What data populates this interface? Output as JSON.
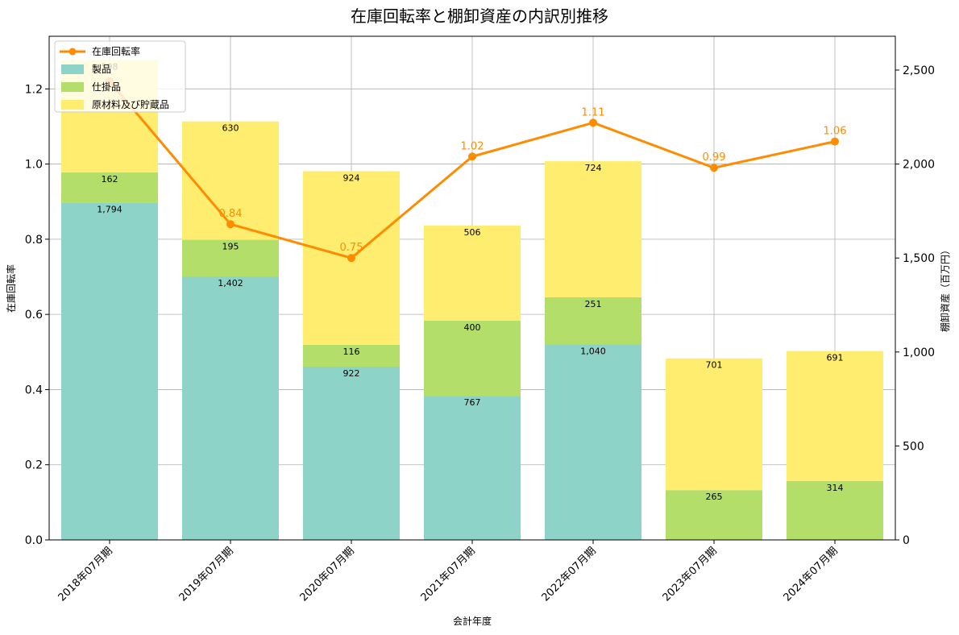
{
  "chart_data": {
    "type": "bar",
    "title": "在庫回転率と棚卸資産の内訳別推移",
    "xlabel": "会計年度",
    "ylabel_left": "在庫回転率",
    "ylabel_right": "棚卸資産（百万円）",
    "categories": [
      "2018年07月期",
      "2019年07月期",
      "2020年07月期",
      "2021年07月期",
      "2022年07月期",
      "2023年07月期",
      "2024年07月期"
    ],
    "stacked_series": [
      {
        "name": "製品",
        "color": "#8dd3c7",
        "values": [
          1794,
          1402,
          922,
          767,
          1040,
          0,
          0
        ],
        "labels": [
          "1,794",
          "1,402",
          "922",
          "767",
          "1,040",
          "",
          ""
        ]
      },
      {
        "name": "仕掛品",
        "color": "#b3de69",
        "values": [
          162,
          195,
          116,
          400,
          251,
          265,
          314
        ],
        "labels": [
          "162",
          "195",
          "116",
          "400",
          "251",
          "265",
          "314"
        ]
      },
      {
        "name": "原材料及び貯蔵品",
        "color": "#ffed6f",
        "values": [
          598,
          630,
          924,
          506,
          724,
          701,
          691
        ],
        "labels": [
          "598",
          "630",
          "924",
          "506",
          "724",
          "701",
          "691"
        ]
      }
    ],
    "line_series": {
      "name": "在庫回転率",
      "color": "#ff8c00",
      "values": [
        1.22,
        0.84,
        0.75,
        1.02,
        1.11,
        0.99,
        1.06
      ],
      "labels": [
        "",
        "0.84",
        "0.75",
        "1.02",
        "1.11",
        "0.99",
        "1.06"
      ]
    },
    "ylim_left": [
      0,
      1.34
    ],
    "ylim_right": [
      0,
      2680
    ],
    "yticks_left": [
      "0.0",
      "0.2",
      "0.4",
      "0.6",
      "0.8",
      "1.0",
      "1.2"
    ],
    "yticks_right": [
      "0",
      "500",
      "1,000",
      "1,500",
      "2,000",
      "2,500"
    ],
    "grid": true,
    "legend_position": "top-left"
  }
}
